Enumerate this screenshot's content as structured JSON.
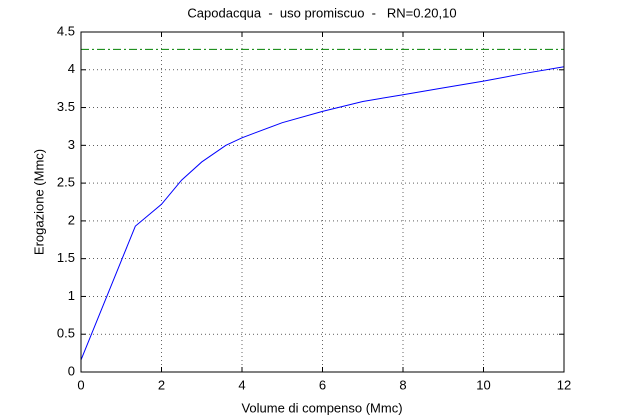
{
  "chart_data": {
    "type": "line",
    "title": "Capodacqua  -  uso promiscuo  -   RN=0.20,10",
    "x_label": "Volume di compenso (Mmc)",
    "y_label": "Erogazione (Mmc)",
    "xlim": [
      0,
      12
    ],
    "xticks": [
      0,
      2,
      4,
      6,
      8,
      10,
      12
    ],
    "ylim": [
      0,
      4.5
    ],
    "yticks": [
      0,
      0.5,
      1,
      1.5,
      2,
      2.5,
      3,
      3.5,
      4,
      4.5
    ],
    "grid": true,
    "series": [
      {
        "color": "#0000ff",
        "dash": "solid",
        "x": [
          0,
          1.35,
          2,
          2.5,
          3,
          3.6,
          4,
          5,
          6,
          7,
          8,
          9,
          10,
          11,
          12
        ],
        "values": [
          0.16,
          1.93,
          2.22,
          2.54,
          2.78,
          3.0,
          3.1,
          3.3,
          3.45,
          3.58,
          3.67,
          3.76,
          3.85,
          3.95,
          4.04
        ]
      },
      {
        "color": "#008000",
        "dash": "dashdot",
        "x": [
          0,
          12
        ],
        "values": [
          4.27,
          4.27
        ]
      }
    ]
  }
}
